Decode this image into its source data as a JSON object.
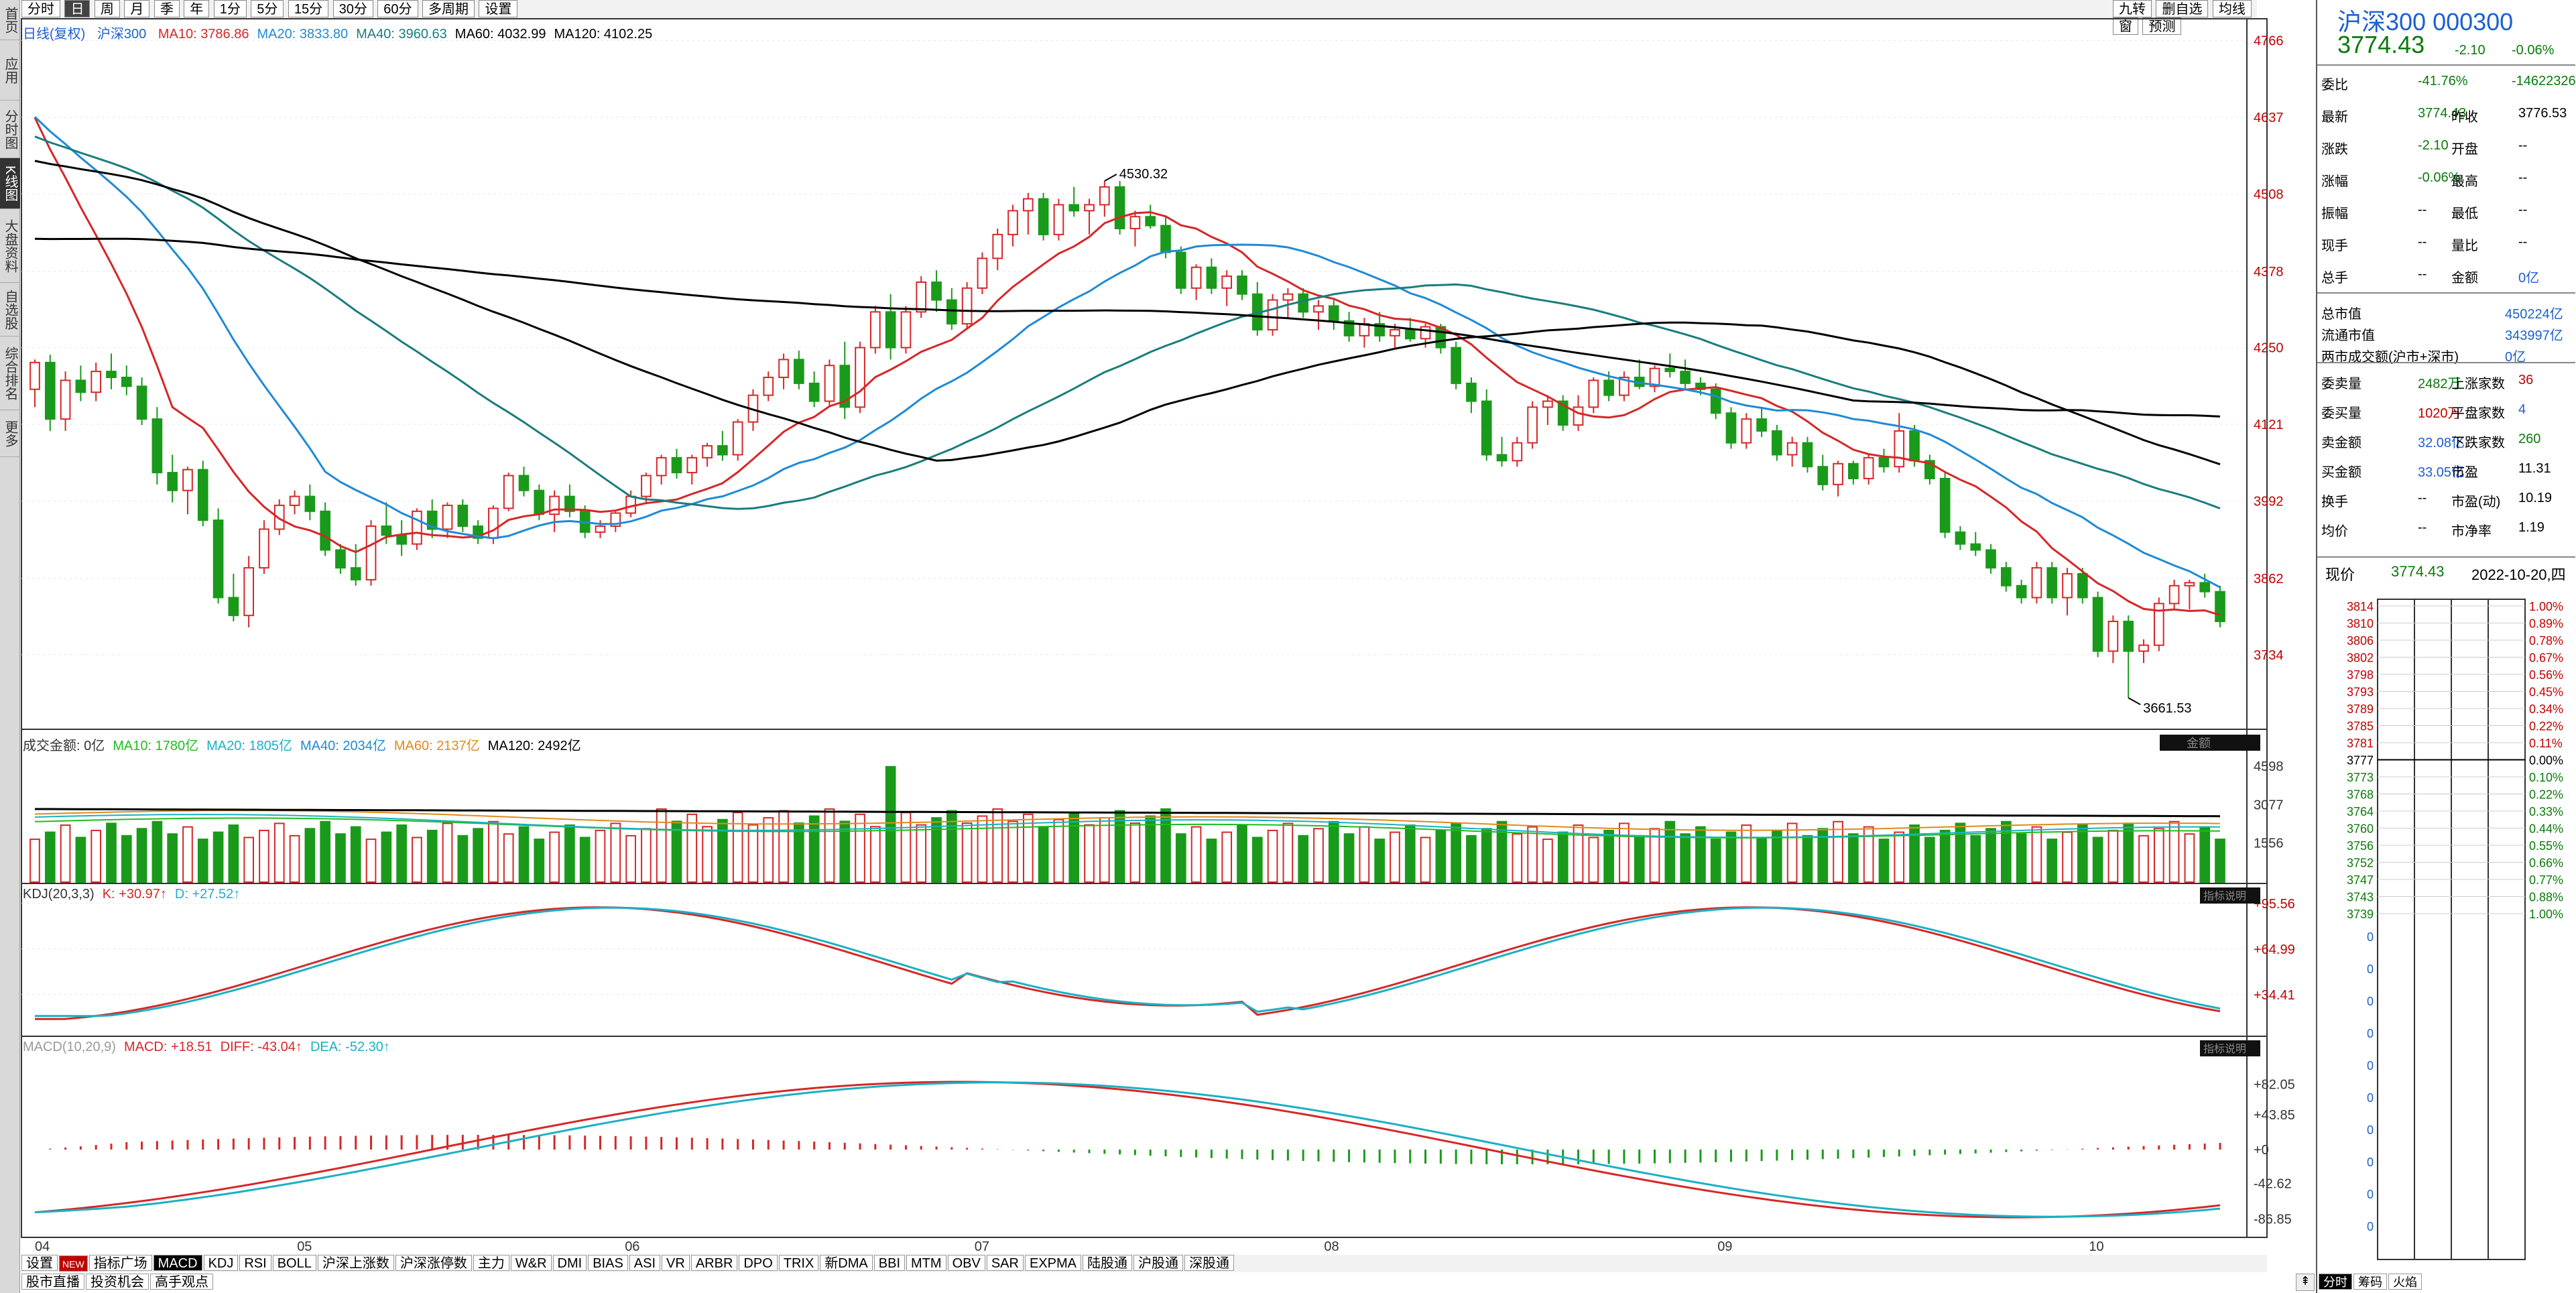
{
  "left_sidebar": [
    {
      "label": "首页"
    },
    {
      "label": "应用"
    },
    {
      "label": "分时图"
    },
    {
      "label": "K线图"
    },
    {
      "label": "大盘资料"
    },
    {
      "label": "自选股"
    },
    {
      "label": "综合排名"
    },
    {
      "label": "更多"
    }
  ],
  "periods": [
    "分时",
    "日",
    "周",
    "月",
    "季",
    "年",
    "1分",
    "5分",
    "15分",
    "30分",
    "60分",
    "多周期",
    "设置"
  ],
  "active_period": "日",
  "top_right_tools": [
    "九转",
    "删自选",
    "均线",
    "窗",
    "预测"
  ],
  "chart": {
    "title": "日线(复权)",
    "name": "沪深300",
    "ma": [
      {
        "label": "MA10: 3786.86",
        "color": "#d62728"
      },
      {
        "label": "MA20: 3833.80",
        "color": "#1f8ad6"
      },
      {
        "label": "MA40: 3960.63",
        "color": "#1a7d7d"
      },
      {
        "label": "MA60: 4032.99",
        "color": "#000000"
      },
      {
        "label": "MA120: 4102.25",
        "color": "#000000"
      }
    ],
    "high_label": "4530.32",
    "low_label": "3661.53",
    "y_ticks": [
      "4766",
      "4637",
      "4508",
      "4378",
      "4250",
      "4121",
      "3992",
      "3862",
      "3734"
    ]
  },
  "volume": {
    "legend": [
      {
        "label": "成交金额: 0亿",
        "color": "#333333"
      },
      {
        "label": "MA10: 1780亿",
        "color": "#1fbd1f"
      },
      {
        "label": "MA20: 1805亿",
        "color": "#1bb0c4"
      },
      {
        "label": "MA40: 2034亿",
        "color": "#1f8ad6"
      },
      {
        "label": "MA60: 2137亿",
        "color": "#e08a1a"
      },
      {
        "label": "MA120: 2492亿",
        "color": "#000000"
      }
    ],
    "badge": "金额",
    "y_ticks": [
      "4598",
      "3077",
      "1556"
    ]
  },
  "kdj": {
    "legend": [
      {
        "label": "KDJ(20,3,3)",
        "color": "#333333"
      },
      {
        "label": "K: +30.97↑",
        "color": "#d62728"
      },
      {
        "label": "D: +27.52↑",
        "color": "#1bb0c4"
      }
    ],
    "badge": "指标说明",
    "y_ticks": [
      "+95.56",
      "+64.99",
      "+34.41"
    ]
  },
  "macd": {
    "legend": [
      {
        "label": "MACD(10,20,9)",
        "color": "#999999"
      },
      {
        "label": "MACD: +18.51",
        "color": "#d62728"
      },
      {
        "label": "DIFF: -43.04↑",
        "color": "#d62728"
      },
      {
        "label": "DEA: -52.30↑",
        "color": "#1bb0c4"
      }
    ],
    "badge": "指标说明",
    "y_ticks": [
      "+82.05",
      "+43.85",
      "+0",
      "-42.62",
      "-86.85"
    ]
  },
  "x_ticks": [
    "04",
    "05",
    "06",
    "07",
    "08",
    "09",
    "10"
  ],
  "bottom_tabs": [
    "设置",
    "NEW",
    "指标广场",
    "MACD",
    "KDJ",
    "RSI",
    "BOLL",
    "沪深上涨数",
    "沪深涨停数",
    "主力",
    "W&R",
    "DMI",
    "BIAS",
    "ASI",
    "VR",
    "ARBR",
    "DPO",
    "TRIX",
    "新DMA",
    "BBI",
    "MTM",
    "OBV",
    "SAR",
    "EXPMA",
    "陆股通",
    "沪股通",
    "深股通"
  ],
  "active_bottom_tab": "MACD",
  "footer_tabs": [
    "股市直播",
    "投资机会",
    "高手观点"
  ],
  "right_panel": {
    "title": "沪深300 000300",
    "price": "3774.43",
    "change": "-2.10",
    "change_pct": "-0.06%",
    "rows": [
      {
        "l1": "委比",
        "v1": "-41.76%",
        "v2": "-14622326",
        "c1": "green",
        "c2": "green"
      },
      {
        "l1": "最新",
        "v1": "3774.43",
        "l2": "昨收",
        "v2": "3776.53",
        "c1": "green",
        "c2": "dark"
      },
      {
        "l1": "涨跌",
        "v1": "-2.10",
        "l2": "开盘",
        "v2": "--",
        "c1": "green",
        "c2": "dark"
      },
      {
        "l1": "涨幅",
        "v1": "-0.06%",
        "l2": "最高",
        "v2": "--",
        "c1": "green",
        "c2": "dark"
      },
      {
        "l1": "振幅",
        "v1": "--",
        "l2": "最低",
        "v2": "--",
        "c1": "dark",
        "c2": "dark"
      },
      {
        "l1": "现手",
        "v1": "--",
        "l2": "量比",
        "v2": "--",
        "c1": "dark",
        "c2": "dark"
      },
      {
        "l1": "总手",
        "v1": "--",
        "l2": "金额",
        "v2": "0亿",
        "c1": "dark",
        "c2": "blue"
      }
    ],
    "rows2": [
      {
        "l1": "总市值",
        "v1": "450224亿",
        "c1": "blue"
      },
      {
        "l1": "流通市值",
        "v1": "343997亿",
        "c1": "blue"
      },
      {
        "l1": "两市成交额(沪市+深市)",
        "v1": "0亿",
        "c1": "blue"
      }
    ],
    "rows3": [
      {
        "l1": "委卖量",
        "v1": "2482万",
        "l2": "上涨家数",
        "v2": "36",
        "c1": "green",
        "c2": "red"
      },
      {
        "l1": "委买量",
        "v1": "1020万",
        "l2": "平盘家数",
        "v2": "4",
        "c1": "red",
        "c2": "blue"
      },
      {
        "l1": "卖金额",
        "v1": "32.08亿",
        "l2": "下跌家数",
        "v2": "260",
        "c1": "blue",
        "c2": "green"
      },
      {
        "l1": "买金额",
        "v1": "33.05亿",
        "l2": "市盈",
        "v2": "11.31",
        "c1": "blue",
        "c2": "dark"
      },
      {
        "l1": "换手",
        "v1": "--",
        "l2": "市盈(动)",
        "v2": "10.19",
        "c1": "dark",
        "c2": "dark"
      },
      {
        "l1": "均价",
        "v1": "--",
        "l2": "市净率",
        "v2": "1.19",
        "c1": "dark",
        "c2": "dark"
      }
    ],
    "now_label": "现价",
    "now_value": "3774.43",
    "now_date": "2022-10-20,四",
    "intraday_left": [
      "3814",
      "3810",
      "3806",
      "3802",
      "3798",
      "3793",
      "3789",
      "3785",
      "3781",
      "3777",
      "3773",
      "3768",
      "3764",
      "3760",
      "3756",
      "3752",
      "3747",
      "3743",
      "3739"
    ],
    "intraday_right": [
      "1.00%",
      "0.89%",
      "0.78%",
      "0.67%",
      "0.56%",
      "0.45%",
      "0.34%",
      "0.22%",
      "0.11%",
      "0.00%",
      "0.10%",
      "0.22%",
      "0.33%",
      "0.44%",
      "0.55%",
      "0.66%",
      "0.77%",
      "0.88%",
      "1.00%"
    ],
    "zeros": [
      "0",
      "0",
      "0",
      "0",
      "0",
      "0",
      "0",
      "0",
      "0",
      "0"
    ],
    "btm_tabs": [
      "分时",
      "筹码",
      "火焰"
    ]
  },
  "chart_data": [
    {
      "type": "candlestick",
      "title": "日线(复权)",
      "y_range": [
        3661.53,
        4766
      ],
      "x_ticks": [
        "04",
        "05",
        "06",
        "07",
        "08",
        "09",
        "10"
      ],
      "annotations": [
        {
          "text": "4530.32",
          "kind": "high"
        },
        {
          "text": "3661.53",
          "kind": "low"
        }
      ],
      "ohlc": [
        [
          4180,
          4230,
          4150,
          4225
        ],
        [
          4225,
          4238,
          4110,
          4130
        ],
        [
          4130,
          4210,
          4110,
          4195
        ],
        [
          4195,
          4220,
          4160,
          4175
        ],
        [
          4175,
          4225,
          4160,
          4210
        ],
        [
          4210,
          4240,
          4180,
          4200
        ],
        [
          4200,
          4220,
          4170,
          4185
        ],
        [
          4185,
          4200,
          4120,
          4130
        ],
        [
          4130,
          4150,
          4020,
          4040
        ],
        [
          4040,
          4070,
          3990,
          4010
        ],
        [
          4010,
          4050,
          3970,
          4045
        ],
        [
          4045,
          4060,
          3950,
          3960
        ],
        [
          3960,
          3980,
          3820,
          3830
        ],
        [
          3830,
          3870,
          3790,
          3800
        ],
        [
          3800,
          3900,
          3780,
          3880
        ],
        [
          3880,
          3960,
          3870,
          3945
        ],
        [
          3945,
          3995,
          3935,
          3985
        ],
        [
          3985,
          4010,
          3970,
          4000
        ],
        [
          4000,
          4020,
          3960,
          3975
        ],
        [
          3975,
          3990,
          3900,
          3910
        ],
        [
          3910,
          3920,
          3870,
          3880
        ],
        [
          3880,
          3920,
          3850,
          3860
        ],
        [
          3860,
          3960,
          3850,
          3950
        ],
        [
          3950,
          3990,
          3920,
          3935
        ],
        [
          3935,
          3960,
          3900,
          3920
        ],
        [
          3920,
          3980,
          3910,
          3975
        ],
        [
          3975,
          3995,
          3930,
          3945
        ],
        [
          3945,
          3990,
          3930,
          3985
        ],
        [
          3985,
          3995,
          3940,
          3950
        ],
        [
          3950,
          3960,
          3920,
          3930
        ],
        [
          3930,
          3985,
          3920,
          3980
        ],
        [
          3980,
          4040,
          3975,
          4035
        ],
        [
          4035,
          4050,
          4000,
          4010
        ],
        [
          4010,
          4020,
          3960,
          3970
        ],
        [
          3970,
          4010,
          3940,
          4000
        ],
        [
          4000,
          4020,
          3965,
          3975
        ],
        [
          3975,
          3985,
          3930,
          3940
        ],
        [
          3940,
          3960,
          3930,
          3950
        ],
        [
          3950,
          3975,
          3940,
          3972
        ],
        [
          3972,
          4010,
          3965,
          4000
        ],
        [
          4000,
          4040,
          3990,
          4035
        ],
        [
          4035,
          4070,
          4020,
          4065
        ],
        [
          4065,
          4080,
          4030,
          4040
        ],
        [
          4040,
          4070,
          4020,
          4065
        ],
        [
          4065,
          4090,
          4050,
          4085
        ],
        [
          4085,
          4110,
          4060,
          4070
        ],
        [
          4070,
          4130,
          4060,
          4125
        ],
        [
          4125,
          4180,
          4110,
          4170
        ],
        [
          4170,
          4210,
          4160,
          4200
        ],
        [
          4200,
          4240,
          4180,
          4230
        ],
        [
          4230,
          4245,
          4180,
          4190
        ],
        [
          4190,
          4210,
          4150,
          4160
        ],
        [
          4160,
          4230,
          4150,
          4220
        ],
        [
          4220,
          4260,
          4130,
          4150
        ],
        [
          4150,
          4260,
          4140,
          4250
        ],
        [
          4250,
          4320,
          4240,
          4310
        ],
        [
          4310,
          4340,
          4230,
          4250
        ],
        [
          4250,
          4320,
          4240,
          4310
        ],
        [
          4310,
          4370,
          4300,
          4360
        ],
        [
          4360,
          4380,
          4310,
          4330
        ],
        [
          4330,
          4350,
          4280,
          4290
        ],
        [
          4290,
          4360,
          4280,
          4350
        ],
        [
          4350,
          4410,
          4340,
          4400
        ],
        [
          4400,
          4450,
          4380,
          4440
        ],
        [
          4440,
          4490,
          4420,
          4480
        ],
        [
          4480,
          4510,
          4440,
          4500
        ],
        [
          4500,
          4510,
          4430,
          4440
        ],
        [
          4440,
          4500,
          4430,
          4490
        ],
        [
          4490,
          4520,
          4470,
          4480
        ],
        [
          4480,
          4500,
          4440,
          4490
        ],
        [
          4490,
          4530,
          4470,
          4520
        ],
        [
          4520,
          4530,
          4440,
          4450
        ],
        [
          4450,
          4480,
          4420,
          4470
        ],
        [
          4470,
          4490,
          4450,
          4455
        ],
        [
          4455,
          4470,
          4400,
          4410
        ],
        [
          4410,
          4420,
          4340,
          4350
        ],
        [
          4350,
          4390,
          4330,
          4385
        ],
        [
          4385,
          4400,
          4340,
          4350
        ],
        [
          4350,
          4380,
          4320,
          4370
        ],
        [
          4370,
          4380,
          4330,
          4340
        ],
        [
          4340,
          4360,
          4270,
          4280
        ],
        [
          4280,
          4340,
          4270,
          4330
        ],
        [
          4330,
          4350,
          4300,
          4340
        ],
        [
          4340,
          4350,
          4300,
          4310
        ],
        [
          4310,
          4330,
          4280,
          4320
        ],
        [
          4320,
          4330,
          4280,
          4295
        ],
        [
          4295,
          4310,
          4260,
          4270
        ],
        [
          4270,
          4300,
          4250,
          4290
        ],
        [
          4290,
          4310,
          4260,
          4270
        ],
        [
          4270,
          4290,
          4250,
          4280
        ],
        [
          4280,
          4300,
          4260,
          4265
        ],
        [
          4265,
          4290,
          4250,
          4285
        ],
        [
          4285,
          4290,
          4240,
          4250
        ],
        [
          4250,
          4260,
          4180,
          4190
        ],
        [
          4190,
          4200,
          4140,
          4160
        ],
        [
          4160,
          4180,
          4060,
          4070
        ],
        [
          4070,
          4100,
          4050,
          4060
        ],
        [
          4060,
          4100,
          4050,
          4090
        ],
        [
          4090,
          4160,
          4080,
          4150
        ],
        [
          4150,
          4170,
          4120,
          4160
        ],
        [
          4160,
          4170,
          4110,
          4120
        ],
        [
          4120,
          4170,
          4110,
          4150
        ],
        [
          4150,
          4200,
          4140,
          4195
        ],
        [
          4195,
          4210,
          4160,
          4170
        ],
        [
          4170,
          4210,
          4160,
          4200
        ],
        [
          4200,
          4230,
          4180,
          4185
        ],
        [
          4185,
          4220,
          4175,
          4215
        ],
        [
          4215,
          4240,
          4200,
          4210
        ],
        [
          4210,
          4230,
          4180,
          4190
        ],
        [
          4190,
          4200,
          4170,
          4180
        ],
        [
          4180,
          4190,
          4130,
          4140
        ],
        [
          4140,
          4150,
          4080,
          4090
        ],
        [
          4090,
          4140,
          4080,
          4130
        ],
        [
          4130,
          4150,
          4100,
          4110
        ],
        [
          4110,
          4120,
          4060,
          4070
        ],
        [
          4070,
          4100,
          4050,
          4090
        ],
        [
          4090,
          4100,
          4040,
          4050
        ],
        [
          4050,
          4070,
          4010,
          4020
        ],
        [
          4020,
          4060,
          4000,
          4055
        ],
        [
          4055,
          4060,
          4020,
          4030
        ],
        [
          4030,
          4070,
          4020,
          4065
        ],
        [
          4065,
          4080,
          4040,
          4050
        ],
        [
          4050,
          4140,
          4040,
          4110
        ],
        [
          4110,
          4120,
          4050,
          4060
        ],
        [
          4060,
          4070,
          4020,
          4030
        ],
        [
          4030,
          4040,
          3930,
          3940
        ],
        [
          3940,
          3950,
          3910,
          3920
        ],
        [
          3920,
          3940,
          3900,
          3910
        ],
        [
          3910,
          3920,
          3870,
          3880
        ],
        [
          3880,
          3890,
          3840,
          3850
        ],
        [
          3850,
          3860,
          3820,
          3830
        ],
        [
          3830,
          3890,
          3820,
          3880
        ],
        [
          3880,
          3890,
          3820,
          3830
        ],
        [
          3830,
          3880,
          3800,
          3870
        ],
        [
          3870,
          3880,
          3820,
          3830
        ],
        [
          3830,
          3840,
          3730,
          3740
        ],
        [
          3740,
          3800,
          3720,
          3790
        ],
        [
          3790,
          3800,
          3661.53,
          3740
        ],
        [
          3740,
          3760,
          3720,
          3750
        ],
        [
          3750,
          3830,
          3740,
          3820
        ],
        [
          3820,
          3860,
          3810,
          3850
        ],
        [
          3850,
          3860,
          3810,
          3855
        ],
        [
          3855,
          3870,
          3830,
          3840
        ],
        [
          3840,
          3850,
          3780,
          3790
        ]
      ]
    },
    {
      "type": "bar",
      "title": "成交金额",
      "y_ticks": [
        "4598",
        "3077",
        "1556"
      ]
    },
    {
      "type": "line",
      "title": "KDJ(20,3,3)",
      "series": [
        {
          "name": "K",
          "last": "+30.97"
        },
        {
          "name": "D",
          "last": "+27.52"
        }
      ],
      "y_ticks": [
        "+95.56",
        "+64.99",
        "+34.41"
      ]
    },
    {
      "type": "line",
      "title": "MACD(10,20,9)",
      "series": [
        {
          "name": "MACD",
          "last": "+18.51"
        },
        {
          "name": "DIFF",
          "last": "-43.04"
        },
        {
          "name": "DEA",
          "last": "-52.30"
        }
      ],
      "y_ticks": [
        "+82.05",
        "+43.85",
        "+0",
        "-42.62",
        "-86.85"
      ]
    }
  ]
}
